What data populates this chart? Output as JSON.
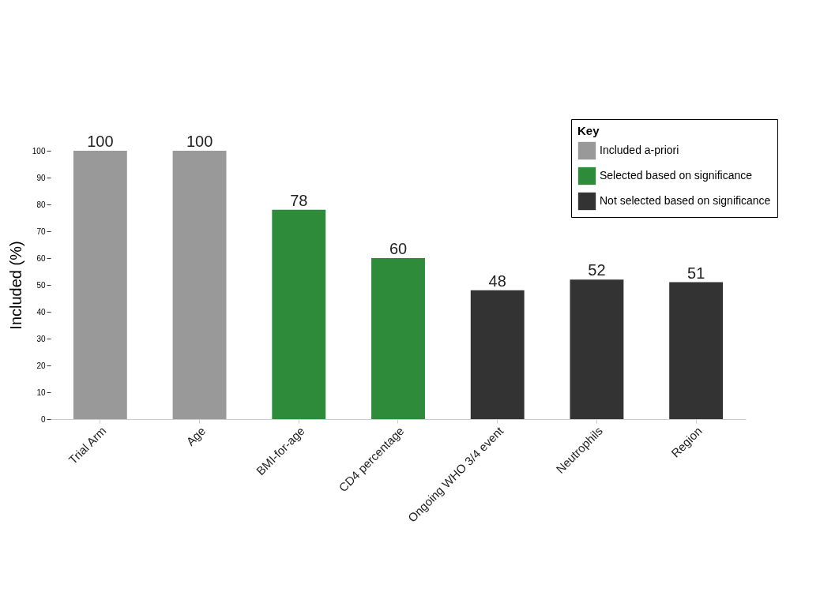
{
  "chart_data": {
    "type": "bar",
    "ylabel": "Included (%)",
    "legend_title": "Key",
    "legend": "top right",
    "data_labels": true,
    "categories": [
      "Trial Arm",
      "Age",
      "BMI-for-age",
      "CD4 percentage",
      "Ongoing WHO 3/4 event",
      "Neutrophils",
      "Region"
    ],
    "ylim": [
      0,
      100
    ],
    "yticks": [
      0,
      10,
      20,
      30,
      40,
      50,
      60,
      70,
      80,
      90,
      100
    ],
    "series": [
      {
        "name": "Included a-priori",
        "color": "#999999",
        "values": [
          100,
          100,
          null,
          null,
          null,
          null,
          null
        ]
      },
      {
        "name": "Selected based on significance",
        "color": "#2e8b3a",
        "values": [
          null,
          null,
          78,
          60,
          null,
          null,
          null
        ]
      },
      {
        "name": "Not selected based on significance",
        "color": "#333333",
        "values": [
          null,
          null,
          null,
          null,
          48,
          52,
          51
        ]
      }
    ]
  }
}
